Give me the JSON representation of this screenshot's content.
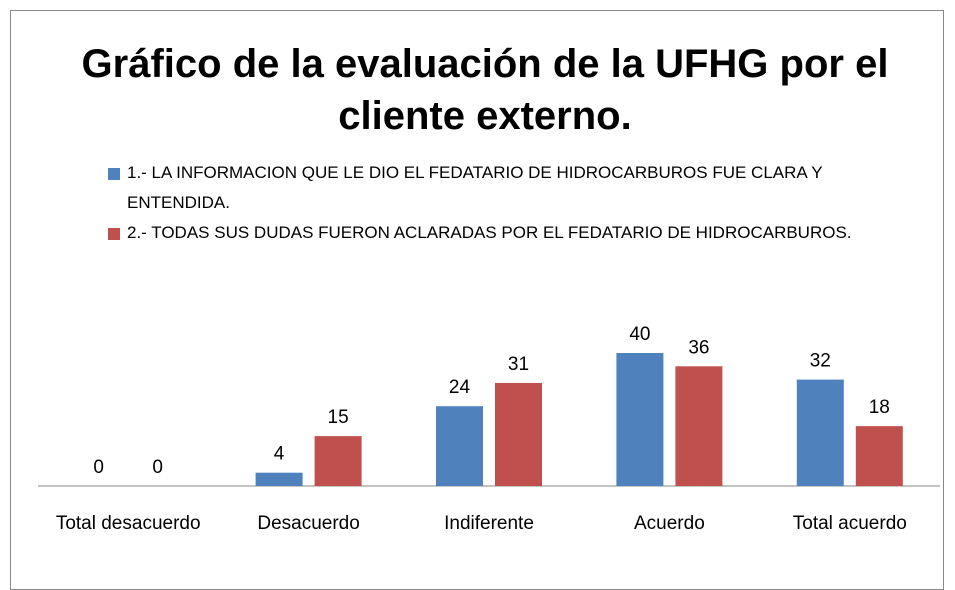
{
  "chart_data": {
    "type": "bar",
    "title": "Gráfico de la evaluación de la UFHG por el cliente externo.",
    "categories": [
      "Total desacuerdo",
      "Desacuerdo",
      "Indiferente",
      "Acuerdo",
      "Total acuerdo"
    ],
    "series": [
      {
        "name": "1.- LA INFORMACION QUE LE DIO EL FEDATARIO DE HIDROCARBUROS FUE CLARA Y ENTENDIDA.",
        "color": "#4f81bd",
        "values": [
          0,
          4,
          24,
          40,
          32
        ]
      },
      {
        "name": "2.- TODAS SUS DUDAS FUERON ACLARADAS POR EL FEDATARIO DE HIDROCARBUROS.",
        "color": "#c0504d",
        "values": [
          0,
          15,
          31,
          36,
          18
        ]
      }
    ],
    "legend": "top"
  }
}
